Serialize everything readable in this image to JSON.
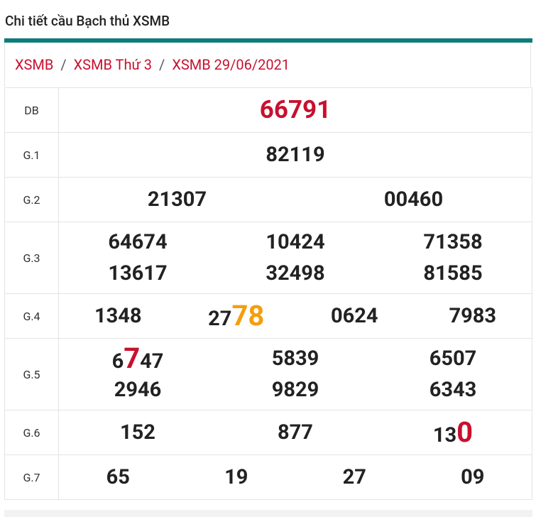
{
  "header": {
    "title": "Chi tiết cầu Bạch thủ XSMB"
  },
  "breadcrumb": {
    "items": [
      "XSMB",
      "XSMB Thứ 3",
      "XSMB 29/06/2021"
    ],
    "separator": "/"
  },
  "table": {
    "rows": [
      {
        "label": "DB",
        "columns": 1,
        "special": true,
        "numbers": [
          "66791"
        ]
      },
      {
        "label": "G.1",
        "columns": 1,
        "numbers": [
          "82119"
        ]
      },
      {
        "label": "G.2",
        "columns": 2,
        "numbers": [
          "21307",
          "00460"
        ]
      },
      {
        "label": "G.3",
        "columns": 3,
        "numbers": [
          "64674",
          "10424",
          "71358",
          "13617",
          "32498",
          "81585"
        ]
      },
      {
        "label": "G.4",
        "columns": 4,
        "numbers": [
          "1348",
          {
            "parts": [
              "27",
              "78"
            ],
            "highlight": 1,
            "color": "#f59e0b"
          },
          "0624",
          "7983"
        ]
      },
      {
        "label": "G.5",
        "columns": 3,
        "numbers": [
          {
            "parts": [
              "6",
              "7",
              "47"
            ],
            "highlight": 1,
            "color": "#c8102e"
          },
          "5839",
          "6507",
          "2946",
          "9829",
          "6343"
        ]
      },
      {
        "label": "G.6",
        "columns": 3,
        "numbers": [
          "152",
          "877",
          {
            "parts": [
              "13",
              "0"
            ],
            "highlight": 1,
            "color": "#c8102e"
          }
        ]
      },
      {
        "label": "G.7",
        "columns": 4,
        "numbers": [
          "65",
          "19",
          "27",
          "09"
        ]
      }
    ]
  }
}
